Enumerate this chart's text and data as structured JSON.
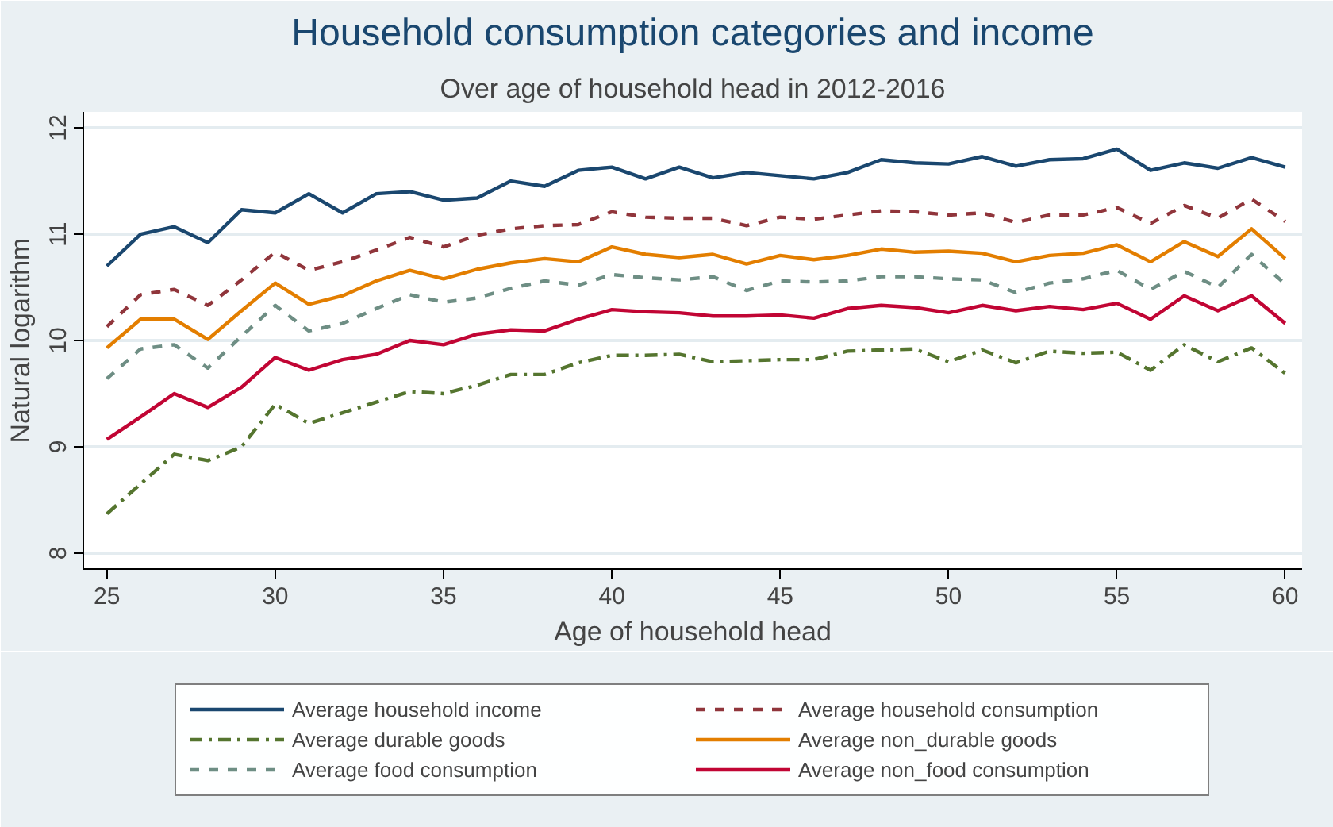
{
  "chart_data": {
    "type": "line",
    "title": "Household consumption categories and income",
    "subtitle": "Over age of household head in 2012-2016",
    "xlabel": "Age of household head",
    "ylabel": "Natural logarithm",
    "x": [
      25,
      26,
      27,
      28,
      29,
      30,
      31,
      32,
      33,
      34,
      35,
      36,
      37,
      38,
      39,
      40,
      41,
      42,
      43,
      44,
      45,
      46,
      47,
      48,
      49,
      50,
      51,
      52,
      53,
      54,
      55,
      56,
      57,
      58,
      59,
      60
    ],
    "xlim": [
      24.3,
      60.5
    ],
    "xticks": [
      25,
      30,
      35,
      40,
      45,
      50,
      55,
      60
    ],
    "ylim": [
      7.85,
      12.15
    ],
    "yticks": [
      8,
      9,
      10,
      11,
      12
    ],
    "grid": "y",
    "legend": "bottom",
    "series": [
      {
        "name": "Average household income",
        "color": "#1a476f",
        "line_style": "solid",
        "values": [
          10.7,
          11.0,
          11.07,
          10.92,
          11.23,
          11.2,
          11.38,
          11.2,
          11.38,
          11.4,
          11.32,
          11.34,
          11.5,
          11.45,
          11.6,
          11.63,
          11.52,
          11.63,
          11.53,
          11.58,
          11.55,
          11.52,
          11.58,
          11.7,
          11.67,
          11.66,
          11.73,
          11.64,
          11.7,
          11.71,
          11.8,
          11.6,
          11.67,
          11.62,
          11.72,
          11.63
        ]
      },
      {
        "name": "Average household consumption",
        "color": "#90353b",
        "line_style": "dashed",
        "values": [
          10.13,
          10.43,
          10.48,
          10.33,
          10.57,
          10.83,
          10.66,
          10.74,
          10.85,
          10.97,
          10.88,
          10.99,
          11.05,
          11.08,
          11.09,
          11.21,
          11.16,
          11.15,
          11.15,
          11.08,
          11.16,
          11.14,
          11.18,
          11.22,
          11.21,
          11.18,
          11.2,
          11.11,
          11.18,
          11.18,
          11.25,
          11.1,
          11.27,
          11.15,
          11.33,
          11.12
        ]
      },
      {
        "name": "Average durable goods",
        "color": "#55752f",
        "line_style": "dashdot",
        "values": [
          8.37,
          8.65,
          8.93,
          8.87,
          9.0,
          9.4,
          9.22,
          9.32,
          9.42,
          9.52,
          9.5,
          9.58,
          9.68,
          9.68,
          9.79,
          9.86,
          9.86,
          9.87,
          9.8,
          9.81,
          9.82,
          9.82,
          9.9,
          9.91,
          9.92,
          9.8,
          9.91,
          9.79,
          9.9,
          9.88,
          9.89,
          9.72,
          9.96,
          9.8,
          9.93,
          9.69
        ]
      },
      {
        "name": "Average non_durable goods",
        "color": "#e37e00",
        "line_style": "solid",
        "values": [
          9.93,
          10.2,
          10.2,
          10.01,
          10.28,
          10.54,
          10.34,
          10.42,
          10.56,
          10.66,
          10.58,
          10.67,
          10.73,
          10.77,
          10.74,
          10.88,
          10.81,
          10.78,
          10.81,
          10.72,
          10.8,
          10.76,
          10.8,
          10.86,
          10.83,
          10.84,
          10.82,
          10.74,
          10.8,
          10.82,
          10.9,
          10.74,
          10.93,
          10.79,
          11.05,
          10.77
        ]
      },
      {
        "name": "Average food consumption",
        "color": "#6e8e84",
        "line_style": "dashed",
        "values": [
          9.64,
          9.92,
          9.96,
          9.74,
          10.04,
          10.33,
          10.09,
          10.16,
          10.3,
          10.43,
          10.36,
          10.4,
          10.49,
          10.56,
          10.52,
          10.62,
          10.59,
          10.57,
          10.6,
          10.47,
          10.56,
          10.55,
          10.56,
          10.6,
          10.6,
          10.58,
          10.57,
          10.45,
          10.54,
          10.58,
          10.66,
          10.48,
          10.65,
          10.5,
          10.81,
          10.53
        ]
      },
      {
        "name": "Average non_food consumption",
        "color": "#c10534",
        "line_style": "solid",
        "values": [
          9.07,
          9.28,
          9.5,
          9.37,
          9.56,
          9.84,
          9.72,
          9.82,
          9.87,
          10.0,
          9.96,
          10.06,
          10.1,
          10.09,
          10.2,
          10.29,
          10.27,
          10.26,
          10.23,
          10.23,
          10.24,
          10.21,
          10.3,
          10.33,
          10.31,
          10.26,
          10.33,
          10.28,
          10.32,
          10.29,
          10.35,
          10.2,
          10.42,
          10.28,
          10.42,
          10.16
        ]
      }
    ]
  }
}
